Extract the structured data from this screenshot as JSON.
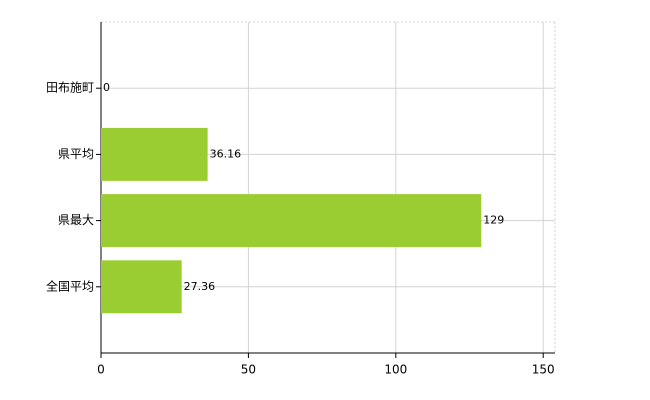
{
  "chart_data": {
    "type": "bar",
    "orientation": "horizontal",
    "categories": [
      "田布施町",
      "県平均",
      "県最大",
      "全国平均"
    ],
    "values": [
      0,
      36.16,
      129,
      27.36
    ],
    "color": "#9acd32",
    "xlim": [
      0,
      154
    ],
    "xticks": [
      0,
      50,
      100,
      150
    ],
    "grid": true
  }
}
